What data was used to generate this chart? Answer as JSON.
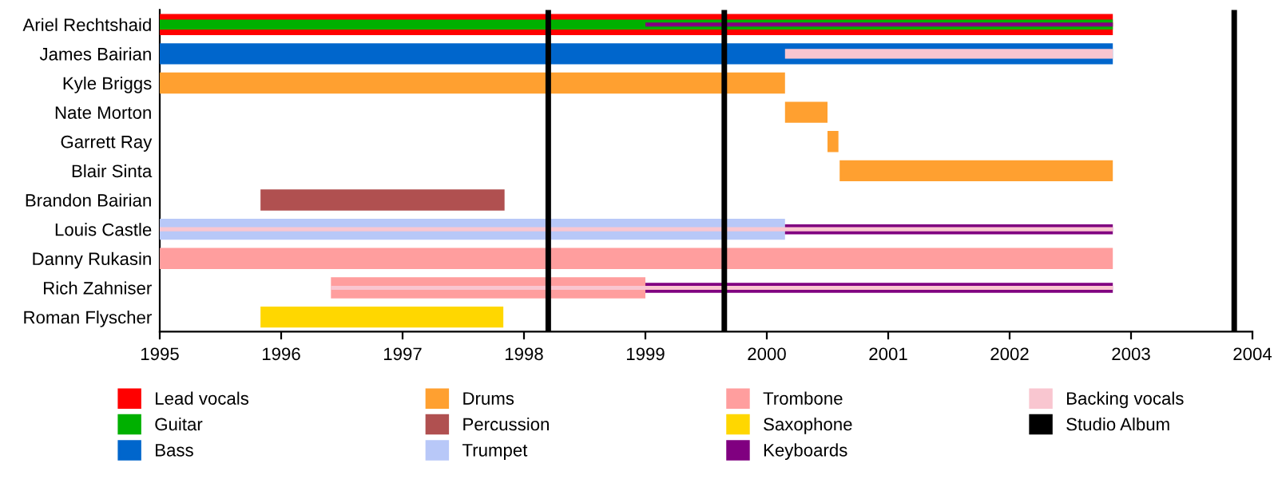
{
  "chart_data": {
    "type": "bar",
    "orientation": "horizontal",
    "categories": [
      "Ariel Rechtshaid",
      "James Bairian",
      "Kyle Briggs",
      "Nate Morton",
      "Garrett Ray",
      "Blair Sinta",
      "Brandon Bairian",
      "Louis Castle",
      "Danny Rukasin",
      "Rich Zahniser",
      "Roman Flyscher"
    ],
    "series": [
      {
        "name": "Lead vocals",
        "color": "#ff0000",
        "base": [
          1995,
          null,
          null,
          null,
          null,
          null,
          null,
          null,
          null,
          null,
          null
        ],
        "values": [
          7.85,
          null,
          null,
          null,
          null,
          null,
          null,
          null,
          null,
          null,
          null
        ]
      },
      {
        "name": "Guitar",
        "color": "#00b000",
        "base": [
          1995,
          null,
          null,
          null,
          null,
          null,
          null,
          null,
          null,
          null,
          null
        ],
        "values": [
          7.85,
          null,
          null,
          null,
          null,
          null,
          null,
          null,
          null,
          null,
          null
        ]
      },
      {
        "name": "Bass",
        "color": "#0066cc",
        "base": [
          null,
          1995,
          null,
          null,
          null,
          null,
          null,
          null,
          null,
          null,
          null
        ],
        "values": [
          null,
          7.85,
          null,
          null,
          null,
          null,
          null,
          null,
          null,
          null,
          null
        ]
      },
      {
        "name": "Drums",
        "color": "#ffa030",
        "base": [
          null,
          null,
          1995,
          2000.15,
          2000.5,
          2000.6,
          null,
          null,
          null,
          null,
          null
        ],
        "values": [
          null,
          null,
          5.15,
          0.35,
          0.09,
          2.25,
          null,
          null,
          null,
          null,
          null
        ]
      },
      {
        "name": "Percussion",
        "color": "#b05050",
        "base": [
          null,
          null,
          null,
          null,
          null,
          null,
          1995.83,
          null,
          null,
          null,
          null
        ],
        "values": [
          null,
          null,
          null,
          null,
          null,
          null,
          2.01,
          null,
          null,
          null,
          null
        ]
      },
      {
        "name": "Trumpet",
        "color": "#b8c8f8",
        "base": [
          null,
          null,
          null,
          null,
          null,
          null,
          null,
          1995,
          null,
          null,
          null
        ],
        "values": [
          null,
          null,
          null,
          null,
          null,
          null,
          null,
          5.15,
          null,
          null,
          null
        ]
      },
      {
        "name": "Trombone",
        "color": "#ff9e9e",
        "base": [
          null,
          null,
          null,
          null,
          null,
          null,
          null,
          null,
          1995,
          1996.41,
          null
        ],
        "values": [
          null,
          null,
          null,
          null,
          null,
          null,
          null,
          null,
          7.85,
          2.59,
          null
        ]
      },
      {
        "name": "Saxophone",
        "color": "#ffd700",
        "base": [
          null,
          null,
          null,
          null,
          null,
          null,
          null,
          null,
          null,
          null,
          1995.83
        ],
        "values": [
          null,
          null,
          null,
          null,
          null,
          null,
          null,
          null,
          null,
          null,
          2.0
        ]
      },
      {
        "name": "Keyboards",
        "color": "#800080",
        "base": [
          1999.0,
          null,
          null,
          null,
          null,
          null,
          null,
          2000.15,
          null,
          1999.0,
          null
        ],
        "values": [
          3.85,
          null,
          null,
          null,
          null,
          null,
          null,
          2.7,
          null,
          3.85,
          null
        ]
      },
      {
        "name": "Backing vocals",
        "color": "#f9c6d0",
        "base": [
          null,
          2000.15,
          null,
          null,
          null,
          null,
          null,
          1995,
          null,
          1996.41,
          null
        ],
        "values": [
          null,
          2.7,
          null,
          null,
          null,
          null,
          null,
          7.85,
          null,
          6.44,
          null
        ]
      }
    ],
    "ref_lines": [
      {
        "axis": "x",
        "value": 1998.2,
        "label": "Studio Album",
        "color": "#000000"
      },
      {
        "axis": "x",
        "value": 1999.65,
        "color": "#000000"
      },
      {
        "axis": "x",
        "value": 2003.85,
        "color": "#000000"
      }
    ],
    "xlim": [
      1995,
      2004
    ],
    "xticks": [
      1995,
      1996,
      1997,
      1998,
      1999,
      2000,
      2001,
      2002,
      2003,
      2004
    ],
    "grid": false,
    "legend": "bottom"
  }
}
